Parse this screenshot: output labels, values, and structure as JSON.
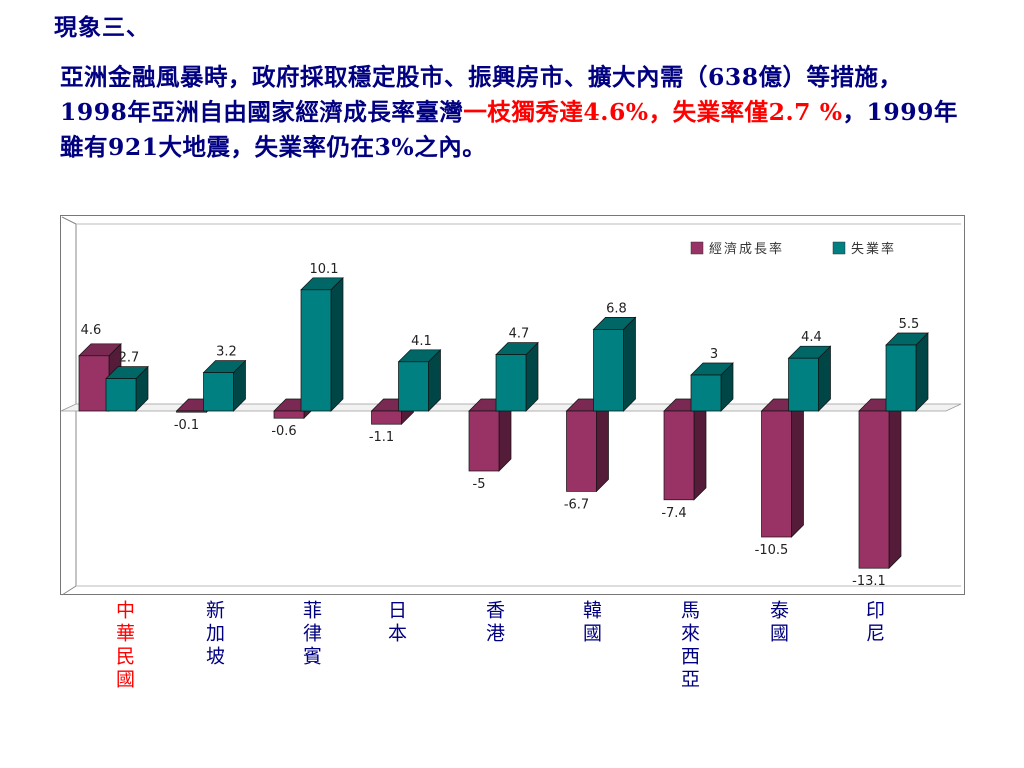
{
  "title": "現象三、",
  "paragraph": {
    "part1": "亞洲金融風暴時，政府採取穩定股市、振興房市、擴大內需（638億）等措施，1998年亞洲自由國家經濟成長率臺灣",
    "highlight1": "一枝獨秀達4.6%",
    "sep1": "，",
    "highlight2": "失業率僅2.7 %",
    "part2": "，1999年雖有921大地震，失業率仍在3%之內。"
  },
  "chart_data": {
    "type": "bar",
    "categories": [
      "中華民國",
      "新加坡",
      "菲律賓",
      "日本",
      "香港",
      "韓國",
      "馬來西亞",
      "泰國",
      "印尼"
    ],
    "series": [
      {
        "name": "經濟成長率",
        "values": [
          4.6,
          -0.1,
          -0.6,
          -1.1,
          -5,
          -6.7,
          -7.4,
          -10.5,
          -13.1
        ],
        "color": "#993366"
      },
      {
        "name": "失業率",
        "values": [
          2.7,
          3.2,
          10.1,
          4.1,
          4.7,
          6.8,
          3,
          4.4,
          5.5
        ],
        "color": "#008080"
      }
    ],
    "growth_labels": [
      "4.6",
      "-0.1",
      "-0.6",
      "-1.1",
      "-5",
      "-6.7",
      "-7.4",
      "-10.5",
      "-13.1"
    ],
    "unemployment_labels": [
      "2.7",
      "3.2",
      "10.1",
      "4.1",
      "4.7",
      "6.8",
      "3",
      "4.4",
      "5.5"
    ],
    "legend_position": "top-right",
    "grid": false,
    "style": "3d-clustered-column"
  }
}
